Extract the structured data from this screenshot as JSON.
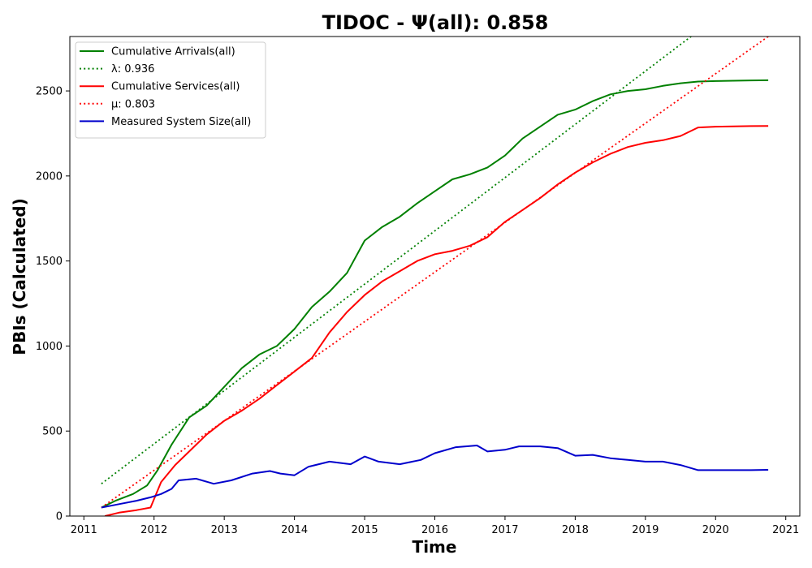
{
  "chart_data": {
    "type": "line",
    "title": "TIDOC -  Ψ(all): 0.858",
    "xlabel": "Time",
    "ylabel": "PBIs (Calculated)",
    "xlim": [
      2010.8,
      2021.2
    ],
    "ylim": [
      0,
      2820
    ],
    "x_ticks": [
      "2011",
      "2012",
      "2013",
      "2014",
      "2015",
      "2016",
      "2017",
      "2018",
      "2019",
      "2020",
      "2021"
    ],
    "x_tick_values": [
      2011,
      2012,
      2013,
      2014,
      2015,
      2016,
      2017,
      2018,
      2019,
      2020,
      2021
    ],
    "y_ticks": [
      "0",
      "500",
      "1000",
      "1500",
      "2000",
      "2500"
    ],
    "y_tick_values": [
      0,
      500,
      1000,
      1500,
      2000,
      2500
    ],
    "grid": false,
    "legend_position": "top-left",
    "series": [
      {
        "name": "Cumulative Arrivals(all)",
        "color": "#008000",
        "style": "solid",
        "x": [
          2011.25,
          2011.45,
          2011.7,
          2011.9,
          2012.05,
          2012.25,
          2012.5,
          2012.75,
          2013.0,
          2013.25,
          2013.5,
          2013.75,
          2014.0,
          2014.25,
          2014.5,
          2014.75,
          2015.0,
          2015.25,
          2015.5,
          2015.75,
          2016.0,
          2016.25,
          2016.5,
          2016.75,
          2017.0,
          2017.25,
          2017.5,
          2017.75,
          2018.0,
          2018.25,
          2018.5,
          2018.75,
          2019.0,
          2019.25,
          2019.5,
          2019.75,
          2020.0,
          2020.25,
          2020.5,
          2020.75
        ],
        "y": [
          50,
          90,
          130,
          180,
          270,
          420,
          580,
          650,
          760,
          870,
          950,
          1000,
          1100,
          1230,
          1320,
          1430,
          1620,
          1700,
          1760,
          1840,
          1910,
          1980,
          2010,
          2050,
          2120,
          2220,
          2290,
          2360,
          2390,
          2440,
          2480,
          2500,
          2510,
          2530,
          2545,
          2555,
          2558,
          2560,
          2562,
          2563
        ]
      },
      {
        "name": "λ: 0.936",
        "color": "#008000",
        "style": "dotted",
        "x": [
          2011.25,
          2019.65
        ],
        "y": [
          190,
          2820
        ]
      },
      {
        "name": "Cumulative Services(all)",
        "color": "#ff0000",
        "style": "solid",
        "x": [
          2011.3,
          2011.5,
          2011.75,
          2011.95,
          2012.1,
          2012.3,
          2012.5,
          2012.75,
          2013.0,
          2013.25,
          2013.5,
          2013.75,
          2014.0,
          2014.25,
          2014.5,
          2014.75,
          2015.0,
          2015.25,
          2015.5,
          2015.75,
          2016.0,
          2016.25,
          2016.5,
          2016.75,
          2017.0,
          2017.25,
          2017.5,
          2017.75,
          2018.0,
          2018.25,
          2018.5,
          2018.75,
          2019.0,
          2019.25,
          2019.5,
          2019.75,
          2020.0,
          2020.25,
          2020.5,
          2020.75
        ],
        "y": [
          0,
          20,
          35,
          50,
          200,
          300,
          380,
          480,
          560,
          620,
          690,
          770,
          850,
          930,
          1080,
          1200,
          1300,
          1380,
          1440,
          1500,
          1540,
          1560,
          1590,
          1640,
          1730,
          1800,
          1870,
          1950,
          2020,
          2080,
          2130,
          2170,
          2195,
          2210,
          2235,
          2285,
          2290,
          2292,
          2293,
          2294
        ]
      },
      {
        "name": "μ: 0.803",
        "color": "#ff0000",
        "style": "dotted",
        "x": [
          2011.25,
          2020.75
        ],
        "y": [
          50,
          2820
        ]
      },
      {
        "name": "Measured System Size(all)",
        "color": "#0000cc",
        "style": "solid",
        "x": [
          2011.25,
          2011.5,
          2011.75,
          2011.95,
          2012.1,
          2012.25,
          2012.35,
          2012.6,
          2012.85,
          2013.1,
          2013.4,
          2013.65,
          2013.8,
          2014.0,
          2014.2,
          2014.5,
          2014.8,
          2015.0,
          2015.2,
          2015.5,
          2015.8,
          2016.0,
          2016.3,
          2016.6,
          2016.75,
          2017.0,
          2017.2,
          2017.5,
          2017.75,
          2018.0,
          2018.25,
          2018.5,
          2018.75,
          2019.0,
          2019.25,
          2019.5,
          2019.75,
          2020.0,
          2020.25,
          2020.5,
          2020.75
        ],
        "y": [
          50,
          70,
          90,
          110,
          130,
          160,
          210,
          220,
          190,
          210,
          250,
          265,
          250,
          240,
          290,
          320,
          305,
          350,
          320,
          305,
          330,
          370,
          405,
          415,
          380,
          390,
          410,
          410,
          400,
          355,
          360,
          340,
          330,
          320,
          320,
          300,
          270,
          270,
          270,
          270,
          272
        ]
      }
    ]
  }
}
